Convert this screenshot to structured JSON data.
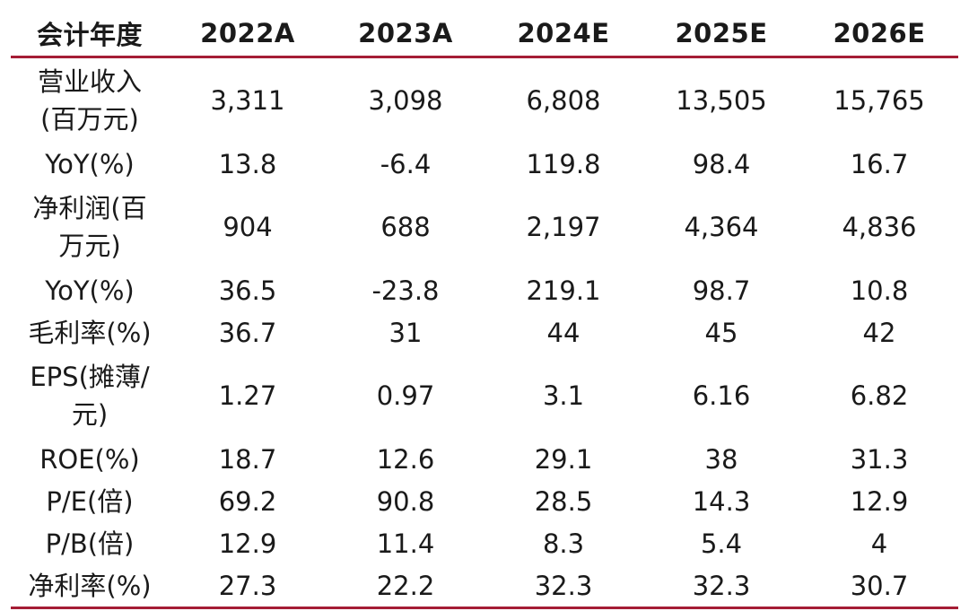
{
  "header": [
    "会计年度",
    "2022A",
    "2023A",
    "2024E",
    "2025E",
    "2026E"
  ],
  "rows": [
    {
      "label_lines": [
        "营业收入",
        "(百万元)"
      ],
      "values": [
        "3,311",
        "3,098",
        "6,808",
        "13,505",
        "15,765"
      ]
    },
    {
      "label_lines": [
        "YoY(%)"
      ],
      "values": [
        "13.8",
        "-6.4",
        "119.8",
        "98.4",
        "16.7"
      ]
    },
    {
      "label_lines": [
        "净利润(百",
        "万元)"
      ],
      "values": [
        "904",
        "688",
        "2,197",
        "4,364",
        "4,836"
      ]
    },
    {
      "label_lines": [
        "YoY(%)"
      ],
      "values": [
        "36.5",
        "-23.8",
        "219.1",
        "98.7",
        "10.8"
      ]
    },
    {
      "label_lines": [
        "毛利率(%)"
      ],
      "values": [
        "36.7",
        "31",
        "44",
        "45",
        "42"
      ]
    },
    {
      "label_lines": [
        "EPS(摊薄/",
        "元)"
      ],
      "values": [
        "1.27",
        "0.97",
        "3.1",
        "6.16",
        "6.82"
      ]
    },
    {
      "label_lines": [
        "ROE(%)"
      ],
      "values": [
        "18.7",
        "12.6",
        "29.1",
        "38",
        "31.3"
      ]
    },
    {
      "label_lines": [
        "P/E(倍)"
      ],
      "values": [
        "69.2",
        "90.8",
        "28.5",
        "14.3",
        "12.9"
      ]
    },
    {
      "label_lines": [
        "P/B(倍)"
      ],
      "values": [
        "12.9",
        "11.4",
        "8.3",
        "5.4",
        "4"
      ]
    },
    {
      "label_lines": [
        "净利率(%)"
      ],
      "values": [
        "27.3",
        "22.2",
        "32.3",
        "32.3",
        "30.7"
      ]
    }
  ],
  "colors": {
    "rule": "#a51d35",
    "text": "#1a1a1a"
  }
}
